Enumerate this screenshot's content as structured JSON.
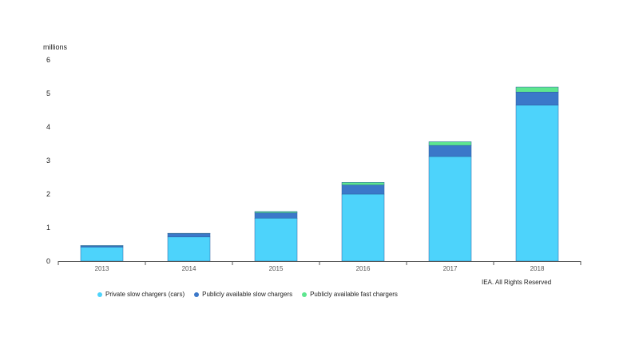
{
  "chart_data": {
    "type": "bar",
    "stacked": true,
    "unit_label": "millions",
    "categories": [
      "2013",
      "2014",
      "2015",
      "2016",
      "2017",
      "2018"
    ],
    "series": [
      {
        "name": "Private slow chargers (cars)",
        "color": "#4dd3fb",
        "values": [
          0.42,
          0.72,
          1.28,
          2.0,
          3.12,
          4.65
        ]
      },
      {
        "name": "Publicly available slow chargers",
        "color": "#3b78c9",
        "values": [
          0.04,
          0.1,
          0.16,
          0.27,
          0.33,
          0.39
        ]
      },
      {
        "name": "Publicly available fast chargers",
        "color": "#5ee68f",
        "values": [
          0.005,
          0.01,
          0.04,
          0.08,
          0.11,
          0.15
        ]
      }
    ],
    "ylim": [
      0,
      6
    ],
    "yticks": [
      "0",
      "1",
      "2",
      "3",
      "4",
      "5",
      "6"
    ],
    "grid": false,
    "legend_position": "bottom-left"
  },
  "source_note": "IEA. All Rights Reserved"
}
